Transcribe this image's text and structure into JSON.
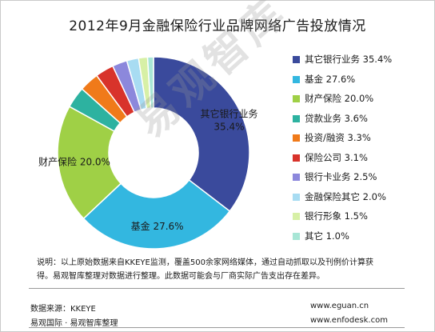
{
  "title": "2012年9月金融保险行业品牌网络广告投放情况",
  "chart_data": {
    "type": "pie",
    "variant": "donut",
    "title": "2012年9月金融保险行业品牌网络广告投放情况",
    "legend_position": "right",
    "unit": "%",
    "slices": [
      {
        "name": "其它银行业务",
        "value": 35.4,
        "label": "其它银行业务 35.4%",
        "color": "#3a4a9c"
      },
      {
        "name": "基金",
        "value": 27.6,
        "label": "基金 27.6%",
        "color": "#33b7e0"
      },
      {
        "name": "财产保险",
        "value": 20.0,
        "label": "财产保险 20.0%",
        "color": "#9fd046"
      },
      {
        "name": "贷款业务",
        "value": 3.6,
        "label": "贷款业务 3.6%",
        "color": "#2db2a0"
      },
      {
        "name": "投资/融资",
        "value": 3.3,
        "label": "投资/融资 3.3%",
        "color": "#f07a1a"
      },
      {
        "name": "保险公司",
        "value": 3.1,
        "label": "保险公司 3.1%",
        "color": "#d8332b"
      },
      {
        "name": "银行卡业务",
        "value": 2.5,
        "label": "银行卡业务 2.5%",
        "color": "#8c88dc"
      },
      {
        "name": "金融保险其它",
        "value": 2.0,
        "label": "金融保险其它 2.0%",
        "color": "#a8dcf2"
      },
      {
        "name": "银行形象",
        "value": 1.5,
        "label": "银行形象 1.5%",
        "color": "#d7f0a6"
      },
      {
        "name": "其它",
        "value": 1.0,
        "label": "其它 1.0%",
        "color": "#a8e6d6"
      }
    ],
    "annotations": [
      {
        "slice": "其它银行业务",
        "line1": "其它银行业务",
        "line2": "35.4%"
      },
      {
        "slice": "基金",
        "text": "基金 27.6%"
      },
      {
        "slice": "财产保险",
        "text": "财产保险 20.0%"
      }
    ]
  },
  "watermark": "易观智库",
  "note": {
    "line1": "说明：以上原始数据来自KKEYE监测，覆盖500余家网络媒体，通过自动抓取以及刊例价计算获",
    "line2": "得。易观智库整理对数据进行整理。此数据可能会与厂商实际广告支出存在差异。"
  },
  "footer": {
    "source": "数据来源：KKEYE",
    "org": "易观国际 · 易观智库整理",
    "url1": "www.eguan.cn",
    "url2": "www.enfodesk.com"
  }
}
